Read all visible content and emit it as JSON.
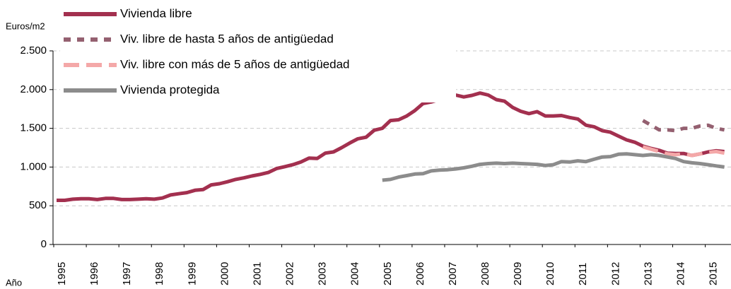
{
  "chart_data": {
    "type": "line",
    "ylabel": "Euros/m2",
    "xlabel": "Año",
    "categories": [
      "1995",
      null,
      null,
      null,
      "1996",
      null,
      null,
      null,
      "1997",
      null,
      null,
      null,
      "1998",
      null,
      null,
      null,
      "1999",
      null,
      null,
      null,
      "2000",
      null,
      null,
      null,
      "2001",
      null,
      null,
      null,
      "2002",
      null,
      null,
      null,
      "2003",
      null,
      null,
      null,
      "2004",
      null,
      null,
      null,
      "2005",
      null,
      null,
      null,
      "2006",
      null,
      null,
      null,
      "2007",
      null,
      null,
      null,
      "2008",
      null,
      null,
      null,
      "2009",
      null,
      null,
      null,
      "2010",
      null,
      null,
      null,
      "2011",
      null,
      null,
      null,
      "2012",
      null,
      null,
      null,
      "2013",
      null,
      null,
      null,
      "2014",
      null,
      null,
      null,
      "2015",
      null,
      null
    ],
    "series": [
      {
        "name": "Vivienda libre",
        "color": "#a3304f",
        "dash": "solid",
        "values": [
          570,
          570,
          585,
          590,
          590,
          580,
          595,
          595,
          580,
          580,
          585,
          590,
          585,
          600,
          640,
          655,
          670,
          700,
          710,
          770,
          785,
          810,
          840,
          860,
          885,
          905,
          930,
          980,
          1005,
          1030,
          1065,
          1115,
          1110,
          1180,
          1195,
          1250,
          1310,
          1365,
          1385,
          1475,
          1500,
          1600,
          1610,
          1660,
          1730,
          1820,
          1840,
          1870,
          1880,
          1930,
          1905,
          1925,
          1955,
          1930,
          1870,
          1850,
          1770,
          1720,
          1690,
          1715,
          1660,
          1660,
          1665,
          1640,
          1620,
          1540,
          1520,
          1470,
          1450,
          1400,
          1350,
          1320,
          1270,
          1240,
          1215,
          1180,
          1175,
          1175,
          1150,
          1170,
          1195,
          1210,
          1200
        ]
      },
      {
        "name": "Viv. libre de hasta 5 años de antigüedad",
        "color": "#946070",
        "dash": "dashed",
        "values": [
          null,
          null,
          null,
          null,
          null,
          null,
          null,
          null,
          null,
          null,
          null,
          null,
          null,
          null,
          null,
          null,
          null,
          null,
          null,
          null,
          null,
          null,
          null,
          null,
          null,
          null,
          null,
          null,
          null,
          null,
          null,
          null,
          null,
          null,
          null,
          null,
          null,
          null,
          null,
          null,
          null,
          null,
          null,
          null,
          null,
          null,
          null,
          null,
          null,
          null,
          null,
          null,
          null,
          null,
          null,
          null,
          null,
          null,
          null,
          null,
          null,
          null,
          null,
          null,
          null,
          null,
          null,
          null,
          null,
          null,
          null,
          null,
          1600,
          1540,
          1480,
          1480,
          1470,
          1500,
          1500,
          1530,
          1540,
          1500,
          1480
        ]
      },
      {
        "name": "Viv. libre con más de 5 años de antigüedad",
        "color": "#f4a8a8",
        "dash": "dashed",
        "values": [
          null,
          null,
          null,
          null,
          null,
          null,
          null,
          null,
          null,
          null,
          null,
          null,
          null,
          null,
          null,
          null,
          null,
          null,
          null,
          null,
          null,
          null,
          null,
          null,
          null,
          null,
          null,
          null,
          null,
          null,
          null,
          null,
          null,
          null,
          null,
          null,
          null,
          null,
          null,
          null,
          null,
          null,
          null,
          null,
          null,
          null,
          null,
          null,
          null,
          null,
          null,
          null,
          null,
          null,
          null,
          null,
          null,
          null,
          null,
          null,
          null,
          null,
          null,
          null,
          null,
          null,
          null,
          null,
          null,
          null,
          null,
          null,
          1260,
          1230,
          1200,
          1170,
          1160,
          1170,
          1150,
          1170,
          1190,
          1200,
          1180
        ]
      },
      {
        "name": "Vivienda protegida",
        "color": "#8c8c8c",
        "dash": "solid",
        "values": [
          null,
          null,
          null,
          null,
          null,
          null,
          null,
          null,
          null,
          null,
          null,
          null,
          null,
          null,
          null,
          null,
          null,
          null,
          null,
          null,
          null,
          null,
          null,
          null,
          null,
          null,
          null,
          null,
          null,
          null,
          null,
          null,
          null,
          null,
          null,
          null,
          null,
          null,
          null,
          null,
          830,
          840,
          870,
          890,
          910,
          915,
          950,
          960,
          965,
          975,
          990,
          1010,
          1035,
          1045,
          1050,
          1045,
          1050,
          1045,
          1040,
          1035,
          1020,
          1030,
          1070,
          1065,
          1080,
          1070,
          1100,
          1130,
          1135,
          1165,
          1170,
          1160,
          1150,
          1160,
          1150,
          1130,
          1110,
          1070,
          1055,
          1045,
          1030,
          1015,
          1000
        ]
      }
    ],
    "ylim": [
      0,
      2500
    ],
    "yticks": [
      0,
      500,
      {
        "value": 1000,
        "label": "1.000"
      },
      {
        "value": 1500,
        "label": "1.500"
      },
      {
        "value": 2000,
        "label": "2.000"
      },
      {
        "value": 2500,
        "label": "2.500"
      }
    ],
    "grid": true,
    "legend": "top-left"
  }
}
